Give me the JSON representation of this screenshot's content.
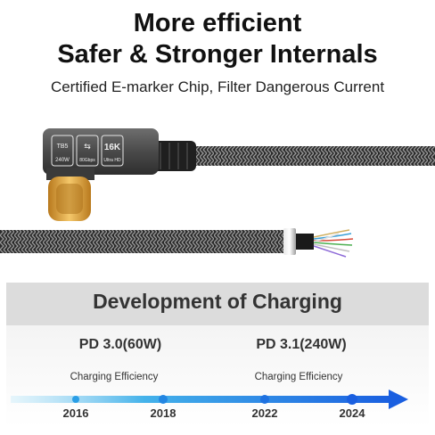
{
  "heading": {
    "line1": "More efficient",
    "line2": "Safer & Stronger Internals",
    "subtitle": "Certified E-marker Chip, Filter Dangerous Current"
  },
  "connector_labels": {
    "speed": "TB5",
    "power": "240W",
    "data": "80Gbps",
    "resolution": "16K",
    "resolution_sub": "Ultra HD"
  },
  "panel": {
    "title": "Development of Charging",
    "standards": [
      "PD 3.0(60W)",
      "PD 3.1(240W)"
    ],
    "efficiency_label": [
      "Charging Efficiency",
      "Charging Efficiency"
    ],
    "years": [
      "2016",
      "2018",
      "2022",
      "2024"
    ]
  },
  "colors": {
    "timeline_start": "#d7f1fb",
    "timeline_end": "#1a5fe0",
    "panel_header": "#dcdcdc",
    "cable": "#3a3a3a",
    "connector_tip": "#e3a53b"
  }
}
